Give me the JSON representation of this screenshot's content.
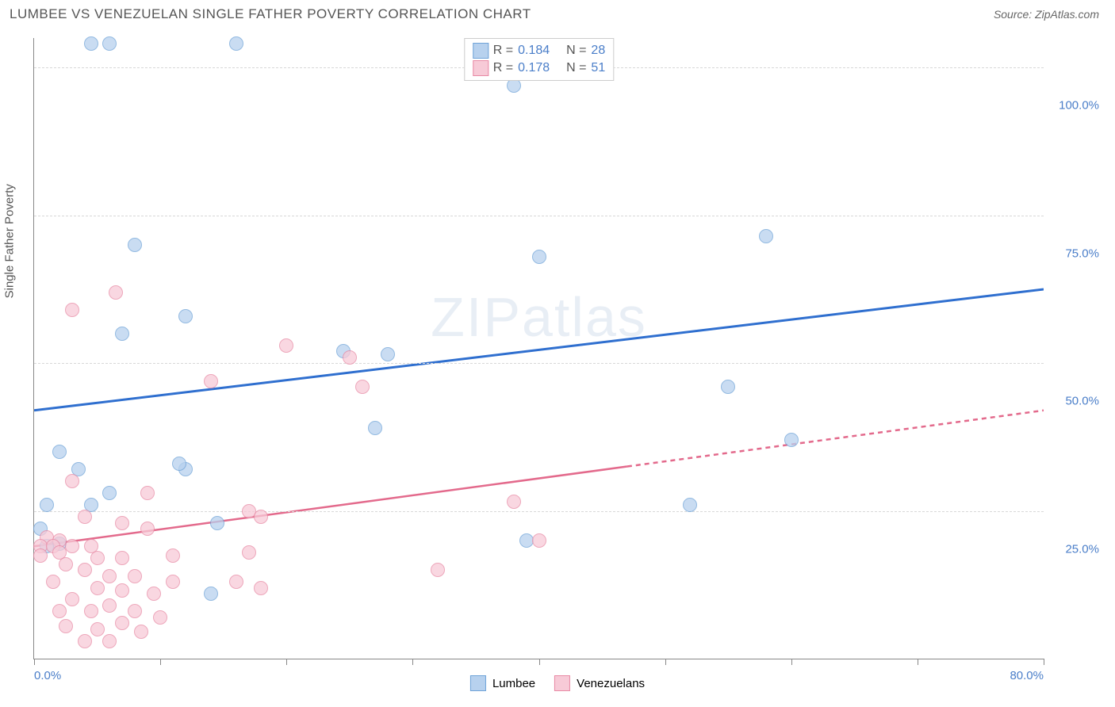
{
  "title": "LUMBEE VS VENEZUELAN SINGLE FATHER POVERTY CORRELATION CHART",
  "source": "Source: ZipAtlas.com",
  "yaxis_label": "Single Father Poverty",
  "watermark": {
    "bold": "ZIP",
    "light": "atlas"
  },
  "chart": {
    "type": "scatter",
    "xlim": [
      0,
      80
    ],
    "ylim": [
      0,
      105
    ],
    "y_ticks": [
      25,
      50,
      75,
      100
    ],
    "y_tick_labels": [
      "25.0%",
      "50.0%",
      "75.0%",
      "100.0%"
    ],
    "x_ticks": [
      0,
      10,
      20,
      30,
      40,
      50,
      60,
      70,
      80
    ],
    "x_tick_labels": {
      "0": "0.0%",
      "80": "80.0%"
    },
    "background_color": "#ffffff",
    "grid_color": "#d8d8d8",
    "axis_color": "#888888",
    "point_radius": 9,
    "series": [
      {
        "name": "Lumbee",
        "color_fill": "#b7d1ee",
        "color_stroke": "#6fa3d8",
        "r": "0.184",
        "n": "28",
        "points": [
          [
            4.5,
            104
          ],
          [
            6,
            104
          ],
          [
            16,
            104
          ],
          [
            38,
            97
          ],
          [
            8,
            70
          ],
          [
            12,
            58
          ],
          [
            7,
            55
          ],
          [
            40,
            68
          ],
          [
            24.5,
            52
          ],
          [
            28,
            51.5
          ],
          [
            27,
            39
          ],
          [
            2,
            35
          ],
          [
            3.5,
            32
          ],
          [
            12,
            32
          ],
          [
            11.5,
            33
          ],
          [
            6,
            28
          ],
          [
            4.5,
            26
          ],
          [
            1,
            26
          ],
          [
            0.5,
            22
          ],
          [
            2,
            19.5
          ],
          [
            1,
            19
          ],
          [
            14,
            11
          ],
          [
            55,
            46
          ],
          [
            58,
            71.5
          ],
          [
            52,
            26
          ],
          [
            60,
            37
          ],
          [
            39,
            20
          ],
          [
            14.5,
            23
          ]
        ],
        "trend": {
          "x1": 0,
          "y1": 42,
          "x2": 80,
          "y2": 62.5,
          "color": "#2f6fcf",
          "width": 3,
          "dash_after_x": null
        }
      },
      {
        "name": "Venezuelans",
        "color_fill": "#f7cad7",
        "color_stroke": "#e88aa5",
        "r": "0.178",
        "n": "51",
        "points": [
          [
            6.5,
            62
          ],
          [
            3,
            59
          ],
          [
            20,
            53
          ],
          [
            25,
            51
          ],
          [
            14,
            47
          ],
          [
            26,
            46
          ],
          [
            3,
            30
          ],
          [
            9,
            28
          ],
          [
            17,
            25
          ],
          [
            18,
            24
          ],
          [
            4,
            24
          ],
          [
            7,
            23
          ],
          [
            9,
            22
          ],
          [
            1,
            20.5
          ],
          [
            2,
            20
          ],
          [
            0.5,
            19
          ],
          [
            1.5,
            19
          ],
          [
            3,
            19
          ],
          [
            4.5,
            19
          ],
          [
            2,
            18
          ],
          [
            0.5,
            17.5
          ],
          [
            5,
            17
          ],
          [
            7,
            17
          ],
          [
            11,
            17.5
          ],
          [
            17,
            18
          ],
          [
            2.5,
            16
          ],
          [
            4,
            15
          ],
          [
            6,
            14
          ],
          [
            8,
            14
          ],
          [
            1.5,
            13
          ],
          [
            5,
            12
          ],
          [
            7,
            11.5
          ],
          [
            9.5,
            11
          ],
          [
            11,
            13
          ],
          [
            3,
            10
          ],
          [
            6,
            9
          ],
          [
            2,
            8
          ],
          [
            4.5,
            8
          ],
          [
            8,
            8
          ],
          [
            10,
            7
          ],
          [
            7,
            6
          ],
          [
            2.5,
            5.5
          ],
          [
            5,
            5
          ],
          [
            8.5,
            4.5
          ],
          [
            6,
            3
          ],
          [
            4,
            3
          ],
          [
            16,
            13
          ],
          [
            18,
            12
          ],
          [
            38,
            26.5
          ],
          [
            40,
            20
          ],
          [
            32,
            15
          ]
        ],
        "trend": {
          "x1": 0,
          "y1": 19,
          "x2": 80,
          "y2": 42,
          "color": "#e36a8c",
          "width": 2.5,
          "dash_after_x": 47
        }
      }
    ]
  },
  "legend_top": {
    "r_label": "R =",
    "n_label": "N ="
  },
  "legend_bottom": [
    {
      "label": "Lumbee",
      "fill": "#b7d1ee",
      "stroke": "#6fa3d8"
    },
    {
      "label": "Venezuelans",
      "fill": "#f7cad7",
      "stroke": "#e88aa5"
    }
  ]
}
